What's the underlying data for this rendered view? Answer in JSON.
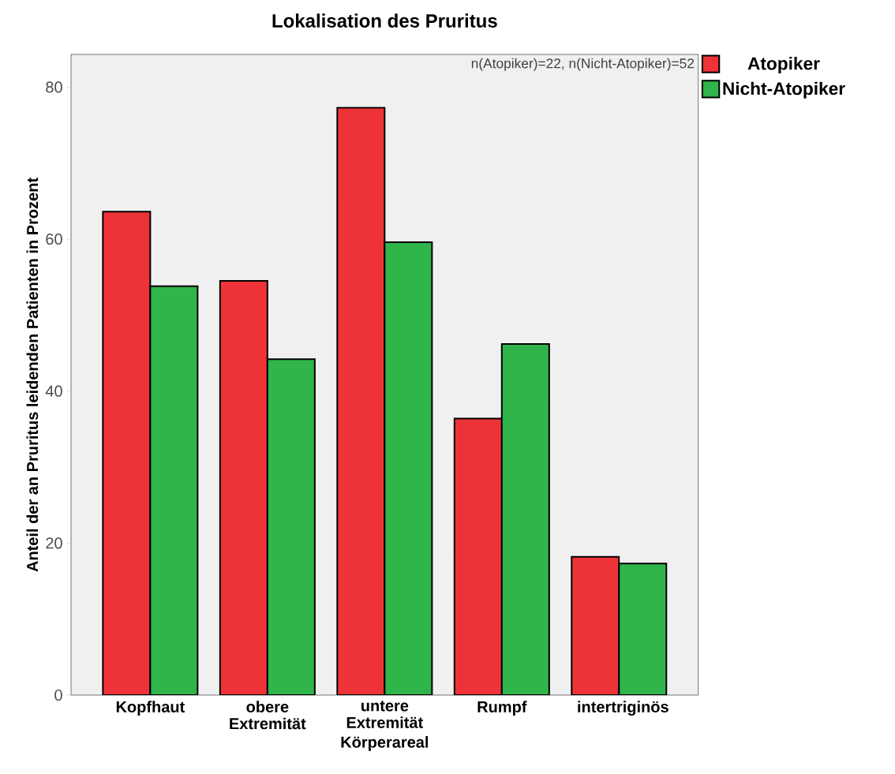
{
  "chart_data": {
    "type": "bar",
    "title": "Lokalisation des Pruritus",
    "xlabel": "Körperareal",
    "ylabel": "Anteil der an Pruritus leidenden Patienten in Prozent",
    "categories": [
      "Kopfhaut",
      "obere Extremität",
      "untere Extremität",
      "Rumpf",
      "intertriginös"
    ],
    "series": [
      {
        "name": "Atopiker",
        "color": "#ee3338",
        "values": [
          63.6,
          54.5,
          77.3,
          36.4,
          18.2
        ]
      },
      {
        "name": "Nicht-Atopiker",
        "color": "#2fb54a",
        "values": [
          53.8,
          44.2,
          59.6,
          46.2,
          17.3
        ]
      }
    ],
    "ylim": [
      0,
      84.3
    ],
    "yticks": [
      0,
      20,
      40,
      60,
      80
    ],
    "grid": false,
    "legend": "top right",
    "annotations": [
      "n(Atopiker)=22, n(Nicht-Atopiker)=52"
    ]
  }
}
